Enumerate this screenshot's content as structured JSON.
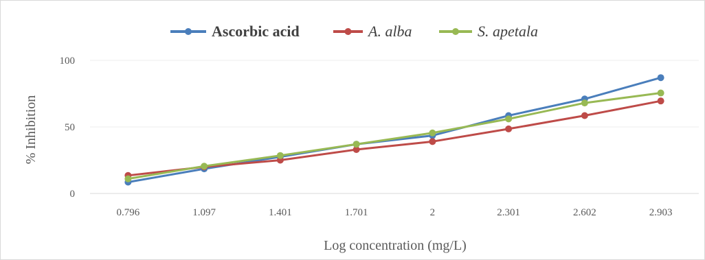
{
  "chart_data": {
    "type": "line",
    "title": "",
    "xlabel": "Log concentration (mg/L)",
    "ylabel": "% Inhibition",
    "categories": [
      "0.796",
      "1.097",
      "1.401",
      "1.701",
      "2",
      "2.301",
      "2.602",
      "2.903"
    ],
    "ylim": [
      0,
      100
    ],
    "yticks": [
      0,
      50,
      100
    ],
    "grid": true,
    "legend_position": "top",
    "series": [
      {
        "name": "Ascorbic acid",
        "color": "#4a7ebb",
        "values": [
          8.5,
          18.5,
          27.5,
          37,
          43.5,
          58.5,
          71,
          87
        ]
      },
      {
        "name": "A. alba",
        "color": "#be4b48",
        "values": [
          13.5,
          20,
          25,
          33,
          39,
          48.5,
          58.5,
          69.5
        ]
      },
      {
        "name": "S. apetala",
        "color": "#98b954",
        "values": [
          11,
          20.5,
          28.5,
          37,
          45.5,
          56,
          68,
          75.5
        ]
      }
    ]
  }
}
